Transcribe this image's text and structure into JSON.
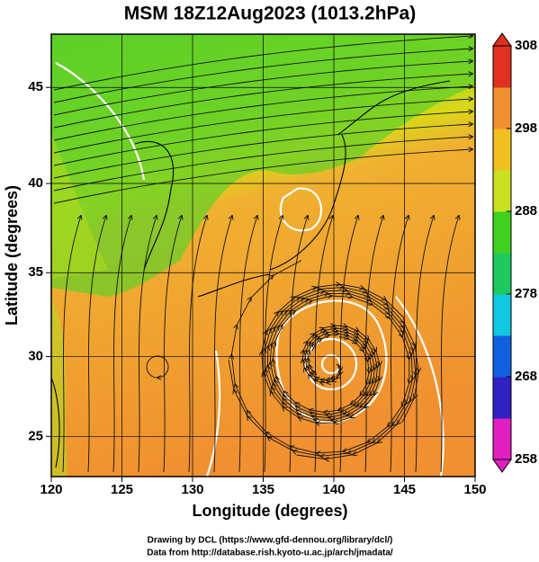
{
  "chart_data": {
    "type": "map",
    "title": "MSM 18Z12Aug2023 (1013.2hPa)",
    "xlabel": "Longitude (degrees)",
    "ylabel": "Latitude  (degrees)",
    "projection": "mercator",
    "xlim": [
      120,
      150
    ],
    "xticks": [
      120,
      125,
      130,
      135,
      140,
      145,
      150
    ],
    "ylim": [
      22.4,
      47.6
    ],
    "yticks": [
      25,
      30,
      35,
      40,
      45
    ],
    "grid": true,
    "colorbar": {
      "lim": [
        258,
        308
      ],
      "ticks": [
        258,
        268,
        278,
        288,
        298,
        308
      ],
      "colors": [
        "#e020c0",
        "#3020c0",
        "#1060e0",
        "#10c8e0",
        "#20c860",
        "#40d020",
        "#c8e020",
        "#f0c020",
        "#f09030",
        "#e03020"
      ]
    }
  },
  "credits": [
    "Drawing by DCL (https://www.gfd-dennou.org/library/dcl/)",
    "Data from http://database.rish.kyoto-u.ac.jp/arch/jmadata/"
  ]
}
